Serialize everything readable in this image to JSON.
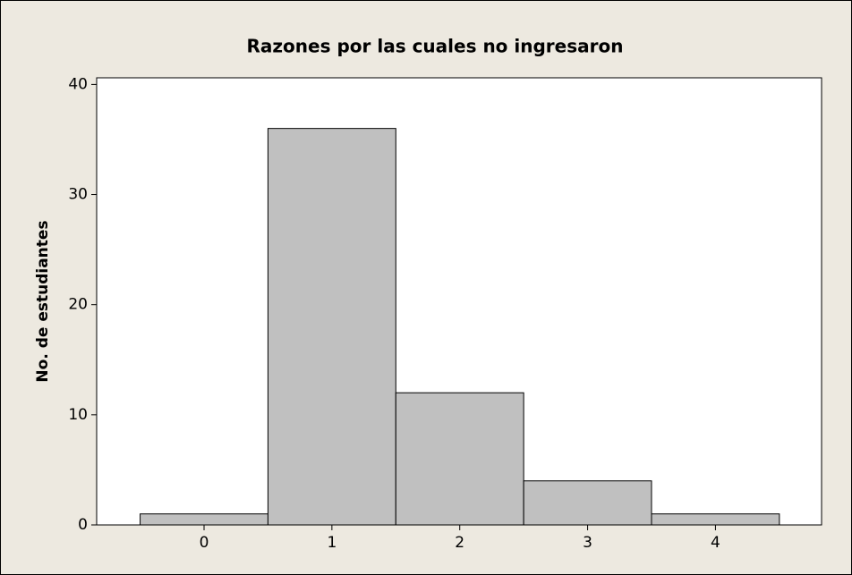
{
  "chart_data": {
    "type": "histogram",
    "title": "Razones por las cuales no ingresaron",
    "y_label": "No. de estudiantes",
    "bins": [
      -0.5,
      0.5,
      1.5,
      2.5,
      3.5,
      4.5
    ],
    "counts": [
      1,
      36,
      12,
      4,
      1
    ],
    "color": "#c0c0c0",
    "xlim": [
      -0.84,
      4.83
    ],
    "xticks": [
      0,
      1,
      2,
      3,
      4
    ],
    "ylim": [
      0,
      40.6
    ],
    "yticks": [
      0,
      10,
      20,
      30,
      40
    ]
  }
}
